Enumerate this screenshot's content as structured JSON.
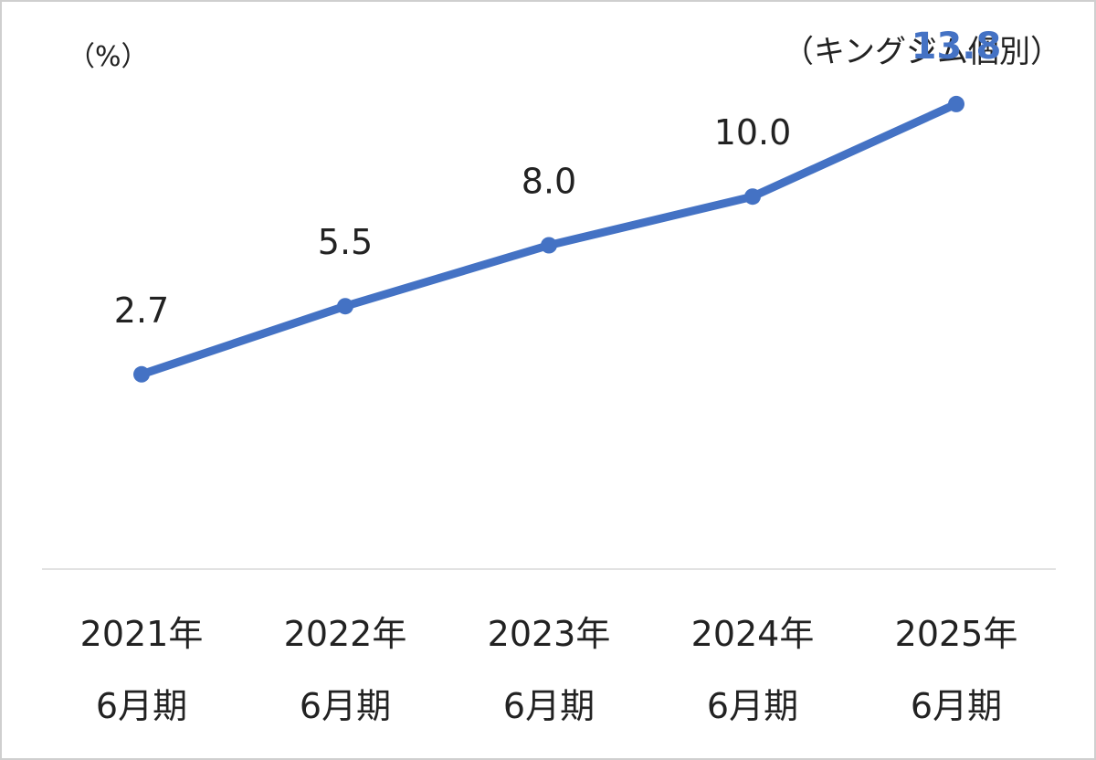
{
  "chart_data": {
    "type": "line",
    "unit_label": "（%）",
    "scope_label": "（キングジム個別）",
    "categories": [
      [
        "2021年",
        "6月期"
      ],
      [
        "2022年",
        "6月期"
      ],
      [
        "2023年",
        "6月期"
      ],
      [
        "2024年",
        "6月期"
      ],
      [
        "2025年",
        "6月期"
      ]
    ],
    "series": [
      {
        "values": [
          2.7,
          5.5,
          8.0,
          10.0,
          13.8
        ],
        "labels": [
          "2.7",
          "5.5",
          "8.0",
          "10.0",
          "13.8"
        ],
        "color": "#4472c4",
        "highlight_last_label_color": "#4472c4"
      }
    ],
    "xlabel": "",
    "ylabel": "",
    "ylim": [
      -5.3,
      18
    ],
    "grid": false,
    "legend": "none"
  }
}
